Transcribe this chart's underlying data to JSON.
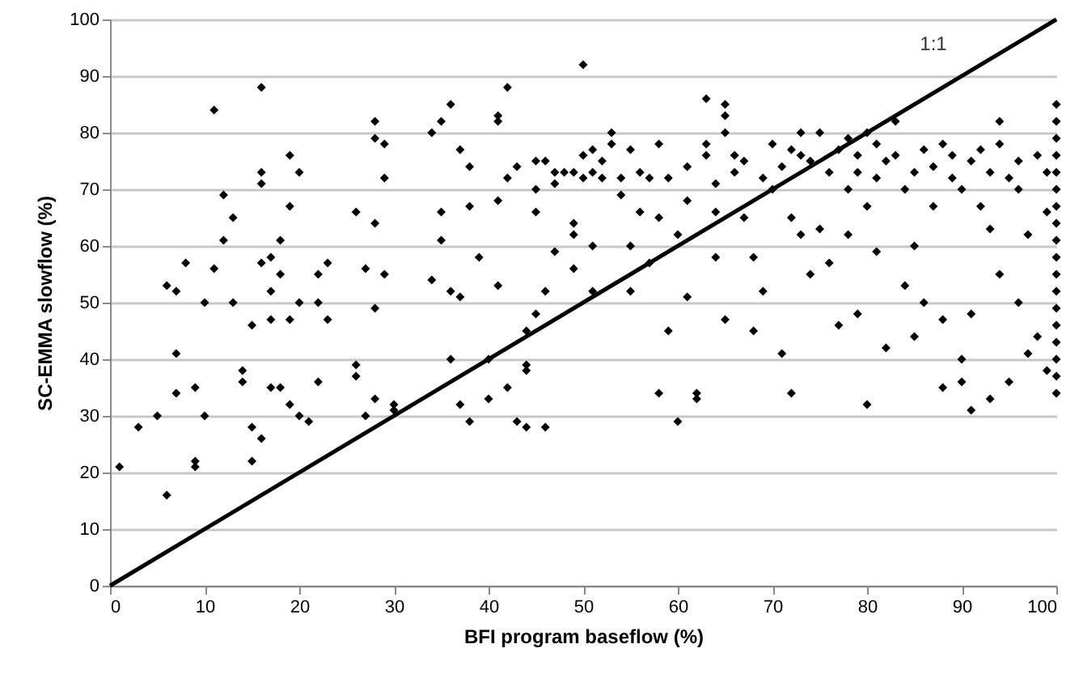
{
  "chart_data": {
    "type": "scatter",
    "xlabel": "BFI program baseflow (%)",
    "ylabel": "SC-EMMA slowflow (%)",
    "xlim": [
      0,
      100
    ],
    "ylim": [
      0,
      100
    ],
    "xticks": [
      0,
      10,
      20,
      30,
      40,
      50,
      60,
      70,
      80,
      90,
      100
    ],
    "yticks": [
      0,
      10,
      20,
      30,
      40,
      50,
      60,
      70,
      80,
      90,
      100
    ],
    "grid": "y",
    "annotations": [
      "1:1"
    ],
    "series": [
      {
        "color": "#000000",
        "marker": "diamond",
        "x": [
          1,
          3,
          5,
          6,
          6,
          7,
          7,
          7,
          8,
          9,
          9,
          9,
          10,
          10,
          11,
          11,
          12,
          12,
          13,
          13,
          14,
          14,
          15,
          15,
          15,
          16,
          16,
          16,
          16,
          16,
          17,
          17,
          17,
          17,
          18,
          18,
          18,
          19,
          19,
          19,
          19,
          20,
          20,
          20,
          21,
          22,
          22,
          22,
          23,
          23,
          26,
          26,
          26,
          27,
          27,
          28,
          28,
          28,
          28,
          28,
          29,
          29,
          29,
          30,
          30,
          34,
          34,
          35,
          35,
          35,
          36,
          36,
          36,
          37,
          37,
          37,
          38,
          38,
          38,
          39,
          40,
          40,
          41,
          41,
          41,
          41,
          42,
          42,
          42,
          43,
          43,
          44,
          44,
          44,
          44,
          45,
          45,
          45,
          45,
          46,
          46,
          46,
          47,
          47,
          47,
          48,
          49,
          49,
          49,
          49,
          50,
          50,
          50,
          51,
          51,
          51,
          51,
          52,
          52,
          53,
          53,
          54,
          54,
          55,
          55,
          55,
          56,
          56,
          57,
          57,
          58,
          58,
          58,
          59,
          59,
          60,
          60,
          61,
          61,
          61,
          62,
          62,
          63,
          63,
          63,
          64,
          64,
          64,
          65,
          65,
          65,
          65,
          66,
          66,
          67,
          67,
          68,
          68,
          69,
          69,
          70,
          70,
          71,
          71,
          72,
          72,
          72,
          73,
          73,
          73,
          74,
          74,
          75,
          75,
          76,
          76,
          77,
          77,
          78,
          78,
          78,
          79,
          79,
          79,
          80,
          80,
          80,
          81,
          81,
          81,
          82,
          82,
          83,
          83,
          84,
          84,
          85,
          85,
          85,
          86,
          86,
          87,
          87,
          88,
          88,
          88,
          89,
          89,
          90,
          90,
          90,
          91,
          91,
          91,
          92,
          92,
          93,
          93,
          93,
          94,
          94,
          94,
          95,
          95,
          96,
          96,
          96,
          97,
          97,
          98,
          98,
          99,
          99,
          99,
          100,
          100,
          100,
          100,
          100,
          100,
          100,
          100,
          100,
          100,
          100,
          100,
          100,
          100,
          100,
          100,
          100,
          100
        ],
        "values": [
          21,
          28,
          30,
          16,
          53,
          52,
          41,
          34,
          57,
          22,
          21,
          35,
          50,
          30,
          56,
          84,
          69,
          61,
          50,
          65,
          36,
          38,
          46,
          22,
          28,
          73,
          71,
          57,
          26,
          88,
          47,
          35,
          52,
          58,
          55,
          61,
          35,
          32,
          47,
          76,
          67,
          73,
          50,
          30,
          29,
          50,
          36,
          55,
          57,
          47,
          39,
          37,
          66,
          56,
          30,
          82,
          79,
          64,
          33,
          49,
          55,
          78,
          72,
          31,
          32,
          80,
          54,
          82,
          66,
          61,
          52,
          40,
          85,
          77,
          51,
          32,
          74,
          67,
          29,
          58,
          40,
          33,
          68,
          82,
          53,
          83,
          88,
          35,
          72,
          74,
          29,
          45,
          39,
          28,
          38,
          48,
          75,
          66,
          70,
          28,
          75,
          52,
          71,
          73,
          59,
          73,
          64,
          62,
          56,
          73,
          92,
          76,
          72,
          77,
          52,
          73,
          60,
          75,
          72,
          80,
          78,
          72,
          69,
          60,
          52,
          77,
          73,
          66,
          57,
          72,
          34,
          78,
          65,
          72,
          45,
          29,
          62,
          68,
          74,
          51,
          33,
          34,
          78,
          86,
          76,
          66,
          58,
          71,
          80,
          83,
          47,
          85,
          76,
          73,
          65,
          75,
          58,
          45,
          72,
          52,
          78,
          70,
          74,
          41,
          77,
          65,
          34,
          80,
          76,
          62,
          55,
          75,
          80,
          63,
          73,
          57,
          77,
          46,
          79,
          70,
          62,
          73,
          76,
          48,
          80,
          67,
          32,
          78,
          72,
          59,
          75,
          42,
          82,
          76,
          70,
          53,
          73,
          60,
          44,
          77,
          50,
          67,
          74,
          78,
          35,
          47,
          72,
          76,
          70,
          40,
          36,
          75,
          48,
          31,
          77,
          67,
          73,
          63,
          33,
          82,
          78,
          55,
          72,
          36,
          75,
          70,
          50,
          62,
          41,
          76,
          44,
          73,
          66,
          38,
          85,
          82,
          79,
          76,
          73,
          70,
          67,
          64,
          61,
          58,
          55,
          52,
          49,
          46,
          43,
          40,
          37,
          34
        ]
      },
      {
        "type": "line",
        "color": "#000000",
        "x": [
          0,
          100
        ],
        "values": [
          0,
          100
        ]
      }
    ]
  }
}
